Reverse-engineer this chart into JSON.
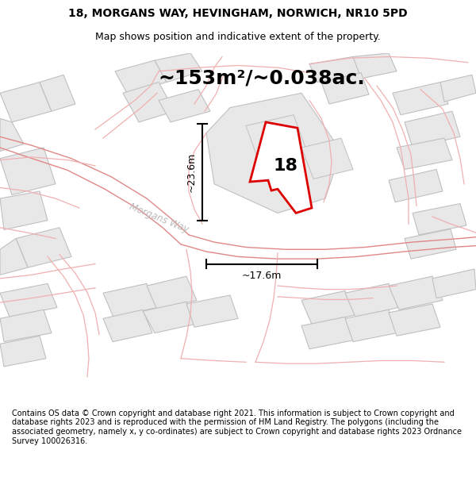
{
  "title_line1": "18, MORGANS WAY, HEVINGHAM, NORWICH, NR10 5PD",
  "title_line2": "Map shows position and indicative extent of the property.",
  "area_text": "~153m²/~0.038ac.",
  "label_18": "18",
  "dim_width": "~17.6m",
  "dim_height": "~23.6m",
  "road_label": "Morgans Way",
  "footer": "Contains OS data © Crown copyright and database right 2021. This information is subject to Crown copyright and database rights 2023 and is reproduced with the permission of HM Land Registry. The polygons (including the associated geometry, namely x, y co-ordinates) are subject to Crown copyright and database rights 2023 Ordnance Survey 100026316.",
  "bg_color": "#ffffff",
  "map_bg": "#f0f0f0",
  "parcel_fill": "#e8e8e8",
  "parcel_edge": "#c0c0c0",
  "road_fill": "#f8f8f8",
  "road_line_color": "#f0b0b0",
  "road_line_color2": "#e08888",
  "highlight_poly_color": "#dd0000",
  "highlight_poly_fill": "#ffffff",
  "dim_line_color": "#111111",
  "title_fontsize": 10,
  "subtitle_fontsize": 9,
  "area_fontsize": 18,
  "label_fontsize": 16,
  "dim_fontsize": 9,
  "road_fontsize": 8.5,
  "footer_fontsize": 7.0
}
